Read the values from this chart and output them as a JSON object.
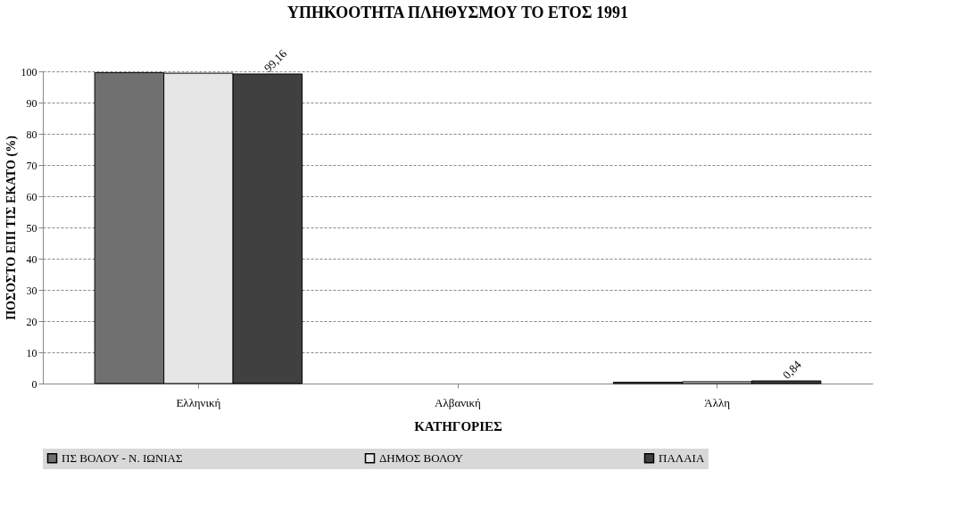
{
  "chart_data": {
    "type": "bar",
    "title": "ΥΠΗΚΟΟΤΗΤΑ ΠΛΗΘΥΣΜΟΥ ΤΟ ΕΤΟΣ 1991",
    "xlabel": "ΚΑΤΗΓΟΡΙΕΣ",
    "ylabel": "ΠΟΣΟΣΤΟ ΕΠΙ ΤΙΣ ΕΚΑΤΟ (%)",
    "categories": [
      "Ελληνική",
      "Αλβανική",
      "Άλλη"
    ],
    "series": [
      {
        "name": "ΠΣ ΒΟΛΟΥ - Ν. ΙΩΝΙΑΣ",
        "color": "#707070",
        "values": [
          99.6,
          0,
          0.4
        ]
      },
      {
        "name": "ΔΗΜΟΣ ΒΟΛΟΥ",
        "color": "#e6e6e6",
        "values": [
          99.4,
          0,
          0.6
        ]
      },
      {
        "name": "ΠΑΛΑΙΑ",
        "color": "#404040",
        "values": [
          99.16,
          0,
          0.84
        ],
        "value_labels": [
          "99,16",
          null,
          "0,84"
        ]
      }
    ],
    "ylim": [
      0,
      100
    ],
    "yticks": [
      0,
      10,
      20,
      30,
      40,
      50,
      60,
      70,
      80,
      90,
      100
    ],
    "grid": "y",
    "legend": "bottom"
  }
}
